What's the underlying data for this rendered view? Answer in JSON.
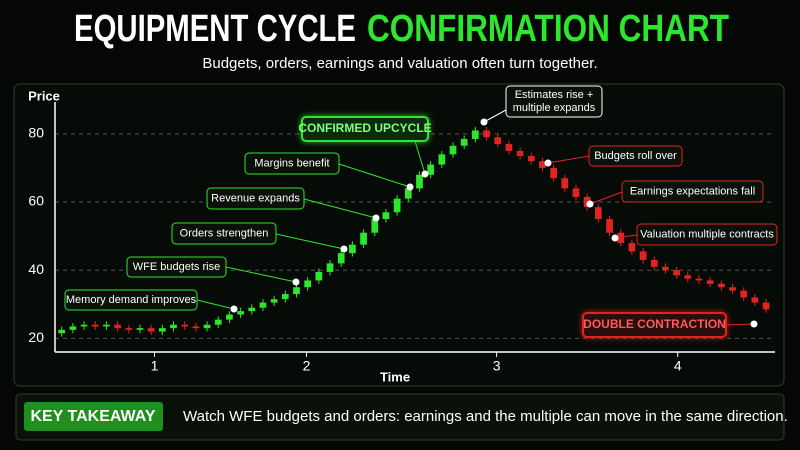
{
  "chart_data": {
    "type": "candlestick",
    "title": [
      "EQUIPMENT CYCLE",
      "CONFIRMATION CHART"
    ],
    "subtitle": "Budgets, orders, earnings and valuation often turn together.",
    "y_label": "Price",
    "x_label": "Time",
    "up_color": "#2ee62e",
    "down_color": "#e02424",
    "ylim": [
      16,
      87
    ],
    "yticks": [
      20,
      40,
      60,
      80
    ],
    "xlim": [
      -0.6,
      63.8
    ],
    "xticks": [
      {
        "value": 8.3,
        "label": "1"
      },
      {
        "value": 21.9,
        "label": "2"
      },
      {
        "value": 38.9,
        "label": "3"
      },
      {
        "value": 55.1,
        "label": "4"
      }
    ],
    "grid": true,
    "open": [
      21.5,
      22.5,
      23.5,
      24,
      23.5,
      24,
      23,
      22.5,
      23,
      22,
      23,
      24,
      23.5,
      23,
      24,
      25.5,
      27,
      28,
      29,
      30.5,
      31.5,
      33,
      35,
      37,
      39.5,
      42,
      45,
      47.5,
      51,
      55,
      57,
      61,
      64,
      68,
      71,
      74,
      76.5,
      78.5,
      81,
      79,
      77,
      75,
      73.5,
      72,
      70,
      67,
      64,
      61.5,
      58.5,
      55,
      51,
      48,
      45.5,
      43,
      41,
      40,
      38.5,
      37.5,
      37,
      36,
      35,
      34,
      32,
      30.5
    ],
    "high": [
      23.5,
      24.5,
      25,
      25,
      25,
      25,
      24,
      24,
      24,
      24,
      25,
      25,
      24.5,
      25,
      26.5,
      28,
      29,
      30,
      31.5,
      32.5,
      34,
      36,
      38,
      40.5,
      43,
      46,
      48.5,
      52,
      56,
      58,
      62,
      65,
      69,
      72,
      75,
      77.5,
      79.5,
      82,
      82,
      80,
      78,
      76,
      74.5,
      73,
      71,
      68,
      65,
      62.5,
      59.5,
      56,
      52,
      49,
      46.5,
      44,
      42,
      41,
      39.5,
      38.5,
      38,
      37,
      36,
      35,
      33,
      31.5
    ],
    "low": [
      20.5,
      21.5,
      22.5,
      22.5,
      22.5,
      22,
      21.5,
      21.5,
      21,
      21,
      22,
      22.5,
      22,
      22,
      23,
      24.5,
      26,
      27,
      28,
      29.5,
      30.5,
      32,
      34,
      36,
      38.5,
      41,
      44,
      46.5,
      50,
      54,
      56,
      60,
      63,
      67,
      70,
      73,
      75.5,
      77.5,
      78,
      76,
      74,
      72.5,
      71,
      69,
      66,
      63,
      60.5,
      57.5,
      54,
      50,
      47,
      44.5,
      42,
      40,
      39,
      37.5,
      36.5,
      36,
      35,
      34,
      33,
      31,
      29.5,
      27.5
    ],
    "close": [
      22.5,
      23.5,
      24,
      23.5,
      24,
      23,
      22.5,
      23,
      22,
      23,
      24,
      23.5,
      23,
      24,
      25.5,
      27,
      28,
      29,
      30.5,
      31.5,
      33,
      35,
      37,
      39.5,
      42,
      45,
      47.5,
      51,
      55,
      57,
      61,
      64,
      68,
      71,
      74,
      76.5,
      78.5,
      81,
      79,
      77,
      75,
      73.5,
      72,
      70,
      67,
      64,
      61.5,
      58.5,
      55,
      51,
      48,
      45.5,
      43,
      41,
      40,
      38.5,
      37.5,
      37,
      36,
      35,
      34,
      32,
      30.5,
      28.5
    ],
    "annotations": [
      {
        "text": [
          "Memory demand improves"
        ],
        "color": "#2ee62e"
      },
      {
        "text": [
          "WFE budgets rise"
        ],
        "color": "#2ee62e"
      },
      {
        "text": [
          "Orders strengthen"
        ],
        "color": "#2ee62e"
      },
      {
        "text": [
          "Revenue expands"
        ],
        "color": "#2ee62e"
      },
      {
        "text": [
          "Margins benefit"
        ],
        "color": "#2ee62e"
      },
      {
        "text": [
          "CONFIRMED UPCYCLE"
        ],
        "color": "#2ee62e"
      },
      {
        "text": [
          "Estimates rise +",
          "multiple expands"
        ],
        "color": "#ffffff"
      },
      {
        "text": [
          "Budgets roll over"
        ],
        "color": "#e02424"
      },
      {
        "text": [
          "Earnings expectations fall"
        ],
        "color": "#e02424"
      },
      {
        "text": [
          "Valuation multiple contracts"
        ],
        "color": "#e02424"
      },
      {
        "text": [
          "DOUBLE CONTRACTION"
        ],
        "color": "#e02424"
      }
    ]
  },
  "takeaway": {
    "label": "KEY TAKEAWAY",
    "text": "Watch WFE budgets and orders: earnings and the multiple can move in the same direction."
  }
}
